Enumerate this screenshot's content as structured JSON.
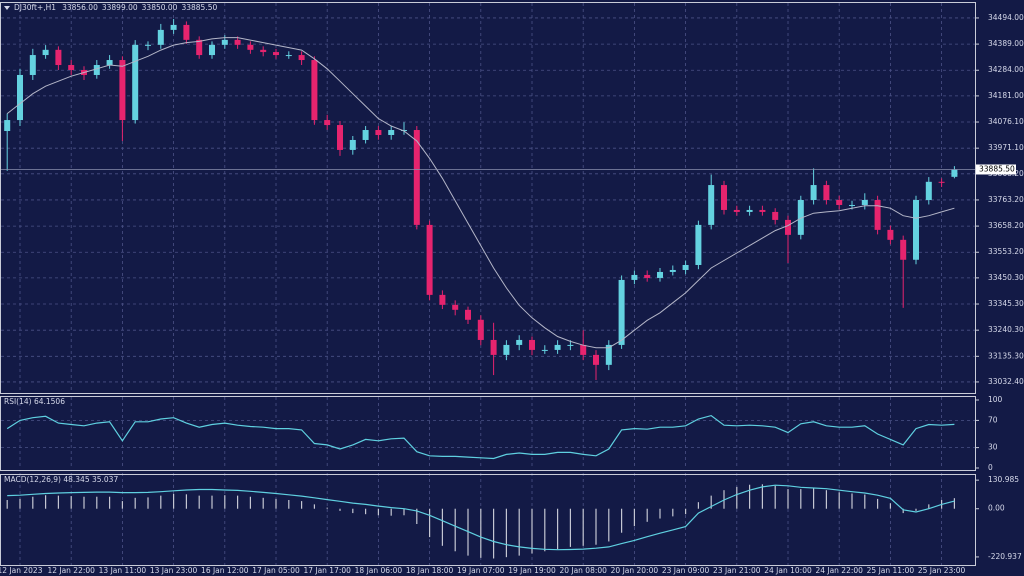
{
  "chart_data": [
    {
      "type": "candlestick",
      "title": "DJ30ft+,H1",
      "header_values": [
        "33856.00",
        "33899.00",
        "33850.00",
        "33885.50"
      ],
      "categories": [
        null,
        "12 Jan 2023",
        null,
        null,
        null,
        "12 Jan 22:00",
        null,
        null,
        null,
        "13 Jan 11:00",
        null,
        null,
        null,
        "13 Jan 23:00",
        null,
        null,
        null,
        "16 Jan 12:00",
        null,
        null,
        null,
        "17 Jan 05:00",
        null,
        null,
        null,
        "17 Jan 17:00",
        null,
        null,
        null,
        "18 Jan 06:00",
        null,
        null,
        null,
        "18 Jan 18:00",
        null,
        null,
        null,
        "19 Jan 07:00",
        null,
        null,
        null,
        "19 Jan 19:00",
        null,
        null,
        null,
        "20 Jan 08:00",
        null,
        null,
        null,
        "20 Jan 20:00",
        null,
        null,
        null,
        "23 Jan 09:00",
        null,
        null,
        null,
        "23 Jan 21:00",
        null,
        null,
        null,
        "24 Jan 10:00",
        null,
        null,
        null,
        "24 Jan 22:00",
        null,
        null,
        null,
        "25 Jan 11:00",
        null,
        null,
        null,
        "25 Jan 23:00",
        null
      ],
      "open": [
        34040,
        34084,
        34265,
        34345,
        34366,
        34305,
        34285,
        34265,
        34305,
        34325,
        34084,
        34386,
        34386,
        34446,
        34466,
        34406,
        34345,
        34386,
        34406,
        34386,
        34366,
        34357,
        34345,
        34345,
        34325,
        34084,
        34064,
        33964,
        34004,
        34044,
        34024,
        34044,
        34044,
        33663,
        33382,
        33342,
        33322,
        33282,
        33201,
        33141,
        33181,
        33201,
        33161,
        33161,
        33181,
        33181,
        33141,
        33101,
        33181,
        33442,
        33462,
        33450,
        33474,
        33482,
        33502,
        33663,
        33823,
        33723,
        33715,
        33723,
        33715,
        33683,
        33623,
        33763,
        33823,
        33763,
        33743,
        33743,
        33763,
        33643,
        33603,
        33523,
        33763,
        33836,
        33856
      ],
      "high": [
        34110,
        34290,
        34370,
        34385,
        34380,
        34325,
        34300,
        34325,
        34345,
        34340,
        34405,
        34400,
        34470,
        34490,
        34480,
        34420,
        34400,
        34425,
        34420,
        34400,
        34380,
        34370,
        34360,
        34360,
        34340,
        34105,
        34080,
        34020,
        34060,
        34060,
        34060,
        34075,
        34060,
        33680,
        33400,
        33360,
        33335,
        33300,
        33270,
        33200,
        33220,
        33215,
        33180,
        33200,
        33200,
        33240,
        33160,
        33200,
        33460,
        33480,
        33480,
        33490,
        33500,
        33520,
        33680,
        33865,
        33840,
        33740,
        33740,
        33740,
        33730,
        33700,
        33780,
        33890,
        33840,
        33780,
        33760,
        33790,
        33780,
        33660,
        33620,
        33780,
        33855,
        33850,
        33899
      ],
      "low": [
        33880,
        34060,
        34245,
        34330,
        34285,
        34265,
        34245,
        34250,
        34290,
        34000,
        34070,
        34365,
        34370,
        34430,
        34390,
        34330,
        34330,
        34370,
        34370,
        34350,
        34340,
        34330,
        34330,
        34305,
        34065,
        34045,
        33940,
        33945,
        33990,
        34005,
        34005,
        34025,
        33645,
        33360,
        33325,
        33300,
        33265,
        33180,
        33060,
        33120,
        33160,
        33140,
        33145,
        33145,
        33160,
        33120,
        33040,
        33080,
        33165,
        33425,
        33435,
        33435,
        33460,
        33465,
        33485,
        33645,
        33705,
        33700,
        33700,
        33700,
        33665,
        33510,
        33605,
        33745,
        33745,
        33725,
        33725,
        33725,
        33625,
        33585,
        33330,
        33505,
        33745,
        33815,
        33850
      ],
      "close": [
        34084,
        34265,
        34345,
        34366,
        34305,
        34285,
        34265,
        34305,
        34325,
        34084,
        34386,
        34386,
        34446,
        34466,
        34406,
        34345,
        34386,
        34406,
        34386,
        34366,
        34357,
        34345,
        34345,
        34325,
        34084,
        34064,
        33964,
        34004,
        34044,
        34024,
        34044,
        34044,
        33663,
        33382,
        33342,
        33322,
        33282,
        33201,
        33141,
        33181,
        33201,
        33161,
        33161,
        33181,
        33181,
        33141,
        33101,
        33181,
        33442,
        33462,
        33450,
        33474,
        33482,
        33502,
        33663,
        33823,
        33723,
        33715,
        33723,
        33715,
        33683,
        33623,
        33763,
        33823,
        33763,
        33743,
        33743,
        33763,
        33643,
        33603,
        33523,
        33763,
        33836,
        33832,
        33885.5
      ],
      "up_color": "#64d2e0",
      "down_color": "#e6246e",
      "ma": {
        "color": "#b4b6c8",
        "values": [
          34110,
          34150,
          34190,
          34220,
          34240,
          34260,
          34275,
          34290,
          34305,
          34300,
          34320,
          34340,
          34365,
          34385,
          34395,
          34400,
          34410,
          34415,
          34415,
          34405,
          34395,
          34385,
          34375,
          34365,
          34330,
          34290,
          34240,
          34190,
          34140,
          34090,
          34060,
          34040,
          34000,
          33930,
          33850,
          33760,
          33670,
          33580,
          33490,
          33410,
          33340,
          33290,
          33250,
          33215,
          33195,
          33180,
          33170,
          33170,
          33200,
          33240,
          33280,
          33310,
          33350,
          33390,
          33440,
          33490,
          33520,
          33550,
          33580,
          33610,
          33640,
          33660,
          33690,
          33710,
          33715,
          33720,
          33730,
          33740,
          33740,
          33730,
          33700,
          33690,
          33700,
          33715,
          33730
        ]
      },
      "last_price": {
        "value": 33885.5,
        "label": "33885.50"
      },
      "ylim": [
        32988,
        34550
      ],
      "yticks": [
        {
          "value": 34494,
          "label": "34494.00"
        },
        {
          "value": 34389,
          "label": "34389.00"
        },
        {
          "value": 34284,
          "label": "34284.00"
        },
        {
          "value": 34181,
          "label": "34181.00"
        },
        {
          "value": 34076.1,
          "label": "34076.10"
        },
        {
          "value": 33971.1,
          "label": "33971.10"
        },
        {
          "value": 33868.2,
          "label": "33868.20"
        },
        {
          "value": 33763.2,
          "label": "33763.20"
        },
        {
          "value": 33658.2,
          "label": "33658.20"
        },
        {
          "value": 33553.2,
          "label": "33553.20"
        },
        {
          "value": 33450.3,
          "label": "33450.30"
        },
        {
          "value": 33345.3,
          "label": "33345.30"
        },
        {
          "value": 33240.3,
          "label": "33240.30"
        },
        {
          "value": 33135.3,
          "label": "33135.30"
        },
        {
          "value": 33032.4,
          "label": "33032.40"
        }
      ],
      "grid": true
    },
    {
      "type": "line",
      "title": "RSI(14) 64.1506",
      "color": "#5fd0e0",
      "values": [
        58,
        70,
        74,
        76,
        66,
        64,
        62,
        66,
        68,
        40,
        68,
        68,
        72,
        74,
        66,
        60,
        64,
        66,
        63,
        61,
        60,
        58,
        58,
        56,
        36,
        34,
        28,
        34,
        42,
        40,
        43,
        44,
        24,
        18,
        17,
        17,
        16,
        15,
        14,
        20,
        22,
        20,
        20,
        23,
        23,
        20,
        18,
        28,
        56,
        58,
        57,
        60,
        60,
        62,
        72,
        77,
        63,
        62,
        63,
        62,
        60,
        52,
        65,
        68,
        62,
        60,
        60,
        62,
        50,
        42,
        34,
        58,
        64,
        63,
        64.1506
      ],
      "ylim": [
        0,
        100
      ],
      "yticks": [
        100,
        70,
        30,
        0
      ],
      "levels": [
        70,
        30
      ],
      "grid": true
    },
    {
      "type": "macd",
      "title": "MACD(12,26,9) 48.345 35.037",
      "hist_color": "#c4c6d2",
      "signal_color": "#5fd0e0",
      "values": [
        40,
        45,
        55,
        62,
        60,
        58,
        55,
        55,
        55,
        35,
        50,
        52,
        60,
        68,
        66,
        60,
        60,
        62,
        60,
        55,
        50,
        45,
        40,
        35,
        20,
        5,
        -10,
        -20,
        -25,
        -30,
        -32,
        -30,
        -70,
        -130,
        -170,
        -195,
        -215,
        -225,
        -228,
        -222,
        -215,
        -205,
        -195,
        -185,
        -175,
        -170,
        -165,
        -150,
        -110,
        -80,
        -60,
        -45,
        -35,
        -25,
        30,
        60,
        85,
        100,
        110,
        112,
        105,
        90,
        90,
        95,
        85,
        75,
        70,
        65,
        45,
        25,
        -20,
        -10,
        20,
        40,
        48.345
      ],
      "signal": [
        60,
        62,
        66,
        70,
        72,
        74,
        75,
        76,
        76,
        74,
        74,
        75,
        78,
        82,
        86,
        88,
        88,
        86,
        84,
        80,
        75,
        70,
        64,
        58,
        50,
        42,
        34,
        26,
        20,
        12,
        5,
        0,
        -10,
        -30,
        -55,
        -80,
        -105,
        -130,
        -150,
        -165,
        -175,
        -182,
        -186,
        -188,
        -187,
        -185,
        -181,
        -175,
        -160,
        -145,
        -128,
        -112,
        -97,
        -82,
        -20,
        10,
        40,
        65,
        85,
        100,
        108,
        105,
        98,
        95,
        92,
        85,
        78,
        72,
        62,
        48,
        -5,
        -15,
        0,
        20,
        35.037
      ],
      "ylim": [
        -290,
        150
      ],
      "yticks": [
        130.985,
        {
          "value": 0,
          "label": "0.00"
        },
        -220.937
      ],
      "grid": true
    }
  ]
}
